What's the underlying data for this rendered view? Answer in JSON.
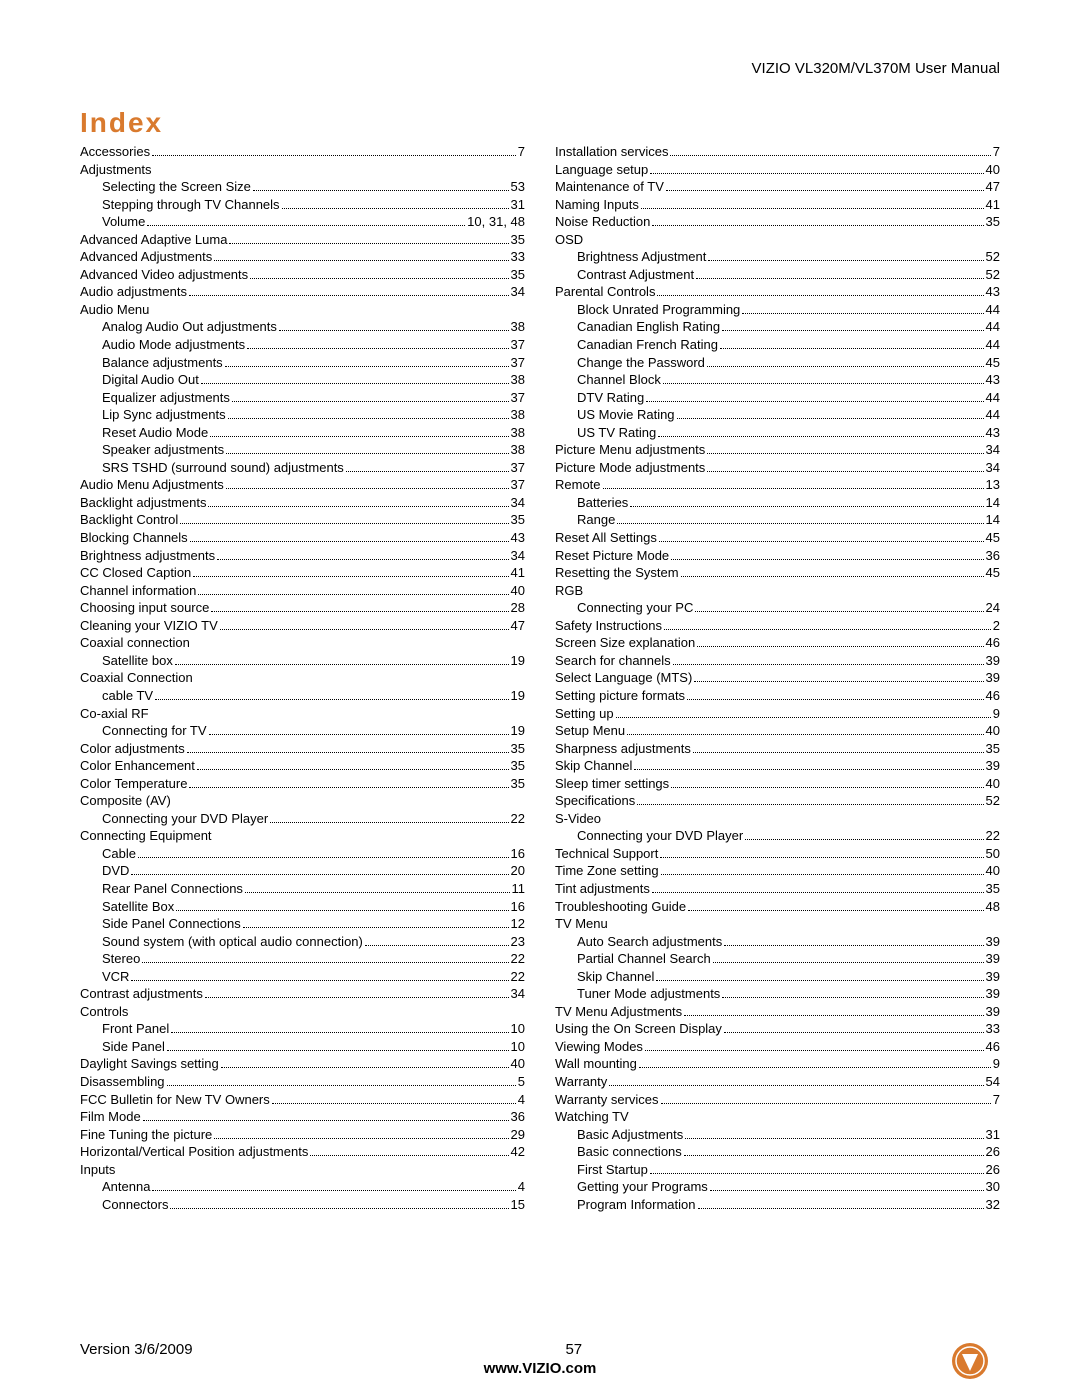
{
  "header": "VIZIO VL320M/VL370M User Manual",
  "title": "Index",
  "footer": {
    "version": "Version 3/6/2009",
    "page": "57",
    "url": "www.VIZIO.com"
  },
  "logo": {
    "outer_color": "#d97a2e",
    "inner_color": "#ffffff"
  },
  "left": [
    {
      "t": "e",
      "l": "Accessories",
      "p": "7"
    },
    {
      "t": "h",
      "l": "Adjustments"
    },
    {
      "t": "s",
      "l": "Selecting the Screen Size",
      "p": "53"
    },
    {
      "t": "s",
      "l": "Stepping through TV Channels",
      "p": "31"
    },
    {
      "t": "s",
      "l": "Volume",
      "p": "10, 31, 48"
    },
    {
      "t": "e",
      "l": "Advanced Adaptive Luma",
      "p": "35"
    },
    {
      "t": "e",
      "l": "Advanced Adjustments",
      "p": "33"
    },
    {
      "t": "e",
      "l": "Advanced Video adjustments",
      "p": "35"
    },
    {
      "t": "e",
      "l": "Audio adjustments",
      "p": "34"
    },
    {
      "t": "h",
      "l": "Audio Menu"
    },
    {
      "t": "s",
      "l": "Analog Audio Out adjustments",
      "p": "38"
    },
    {
      "t": "s",
      "l": "Audio Mode adjustments",
      "p": "37"
    },
    {
      "t": "s",
      "l": "Balance adjustments",
      "p": "37"
    },
    {
      "t": "s",
      "l": "Digital Audio Out",
      "p": "38"
    },
    {
      "t": "s",
      "l": "Equalizer adjustments",
      "p": "37"
    },
    {
      "t": "s",
      "l": "Lip Sync adjustments",
      "p": "38"
    },
    {
      "t": "s",
      "l": "Reset Audio Mode",
      "p": "38"
    },
    {
      "t": "s",
      "l": "Speaker adjustments",
      "p": "38"
    },
    {
      "t": "s",
      "l": "SRS TSHD (surround sound) adjustments",
      "p": "37"
    },
    {
      "t": "e",
      "l": "Audio Menu Adjustments",
      "p": "37"
    },
    {
      "t": "e",
      "l": "Backlight adjustments",
      "p": "34"
    },
    {
      "t": "e",
      "l": "Backlight Control",
      "p": "35"
    },
    {
      "t": "e",
      "l": "Blocking Channels",
      "p": "43"
    },
    {
      "t": "e",
      "l": "Brightness adjustments",
      "p": "34"
    },
    {
      "t": "e",
      "l": "CC Closed Caption",
      "p": "41"
    },
    {
      "t": "e",
      "l": "Channel information",
      "p": "40"
    },
    {
      "t": "e",
      "l": "Choosing input source",
      "p": "28"
    },
    {
      "t": "e",
      "l": "Cleaning your VIZIO TV",
      "p": "47"
    },
    {
      "t": "h",
      "l": "Coaxial connection"
    },
    {
      "t": "s",
      "l": "Satellite box",
      "p": "19"
    },
    {
      "t": "h",
      "l": "Coaxial Connection"
    },
    {
      "t": "s",
      "l": "cable TV",
      "p": "19"
    },
    {
      "t": "h",
      "l": "Co-axial RF"
    },
    {
      "t": "s",
      "l": "Connecting for TV",
      "p": "19"
    },
    {
      "t": "e",
      "l": "Color adjustments",
      "p": "35"
    },
    {
      "t": "e",
      "l": "Color Enhancement",
      "p": "35"
    },
    {
      "t": "e",
      "l": "Color Temperature",
      "p": "35"
    },
    {
      "t": "h",
      "l": "Composite (AV)"
    },
    {
      "t": "s",
      "l": "Connecting your DVD Player",
      "p": "22"
    },
    {
      "t": "h",
      "l": "Connecting Equipment"
    },
    {
      "t": "s",
      "l": "Cable",
      "p": "16"
    },
    {
      "t": "s",
      "l": "DVD",
      "p": "20"
    },
    {
      "t": "s",
      "l": "Rear Panel Connections",
      "p": "11"
    },
    {
      "t": "s",
      "l": "Satellite Box",
      "p": "16"
    },
    {
      "t": "s",
      "l": "Side Panel Connections",
      "p": "12"
    },
    {
      "t": "s",
      "l": "Sound system (with optical audio connection)",
      "p": "23"
    },
    {
      "t": "s",
      "l": "Stereo",
      "p": "22"
    },
    {
      "t": "s",
      "l": "VCR",
      "p": "22"
    },
    {
      "t": "e",
      "l": "Contrast adjustments",
      "p": "34"
    },
    {
      "t": "h",
      "l": "Controls"
    },
    {
      "t": "s",
      "l": "Front Panel",
      "p": "10"
    },
    {
      "t": "s",
      "l": "Side Panel",
      "p": "10"
    },
    {
      "t": "e",
      "l": "Daylight Savings setting",
      "p": "40"
    },
    {
      "t": "e",
      "l": "Disassembling",
      "p": "5"
    },
    {
      "t": "e",
      "l": "FCC Bulletin for New TV Owners",
      "p": "4"
    },
    {
      "t": "e",
      "l": "Film Mode",
      "p": "36"
    },
    {
      "t": "e",
      "l": "Fine Tuning the picture",
      "p": "29"
    },
    {
      "t": "e",
      "l": "Horizontal/Vertical Position adjustments",
      "p": "42"
    },
    {
      "t": "h",
      "l": "Inputs"
    },
    {
      "t": "s",
      "l": "Antenna",
      "p": "4"
    },
    {
      "t": "s",
      "l": "Connectors",
      "p": "15"
    }
  ],
  "right": [
    {
      "t": "e",
      "l": "Installation services",
      "p": "7"
    },
    {
      "t": "e",
      "l": "Language setup",
      "p": "40"
    },
    {
      "t": "e",
      "l": "Maintenance of TV",
      "p": "47"
    },
    {
      "t": "e",
      "l": "Naming Inputs",
      "p": "41"
    },
    {
      "t": "e",
      "l": "Noise Reduction",
      "p": "35"
    },
    {
      "t": "h",
      "l": "OSD"
    },
    {
      "t": "s",
      "l": "Brightness Adjustment",
      "p": "52"
    },
    {
      "t": "s",
      "l": "Contrast Adjustment",
      "p": "52"
    },
    {
      "t": "e",
      "l": "Parental Controls",
      "p": "43"
    },
    {
      "t": "s",
      "l": "Block Unrated Programming",
      "p": "44"
    },
    {
      "t": "s",
      "l": "Canadian English Rating",
      "p": "44"
    },
    {
      "t": "s",
      "l": "Canadian French Rating",
      "p": "44"
    },
    {
      "t": "s",
      "l": "Change the Password",
      "p": "45"
    },
    {
      "t": "s",
      "l": "Channel Block",
      "p": "43"
    },
    {
      "t": "s",
      "l": "DTV Rating",
      "p": "44"
    },
    {
      "t": "s",
      "l": "US Movie Rating",
      "p": "44"
    },
    {
      "t": "s",
      "l": "US TV Rating",
      "p": "43"
    },
    {
      "t": "e",
      "l": "Picture Menu adjustments",
      "p": "34"
    },
    {
      "t": "e",
      "l": "Picture Mode adjustments",
      "p": "34"
    },
    {
      "t": "e",
      "l": "Remote",
      "p": "13"
    },
    {
      "t": "s",
      "l": "Batteries",
      "p": "14"
    },
    {
      "t": "s",
      "l": "Range",
      "p": "14"
    },
    {
      "t": "e",
      "l": "Reset All Settings",
      "p": "45"
    },
    {
      "t": "e",
      "l": "Reset Picture Mode",
      "p": "36"
    },
    {
      "t": "e",
      "l": "Resetting the System",
      "p": "45"
    },
    {
      "t": "h",
      "l": "RGB"
    },
    {
      "t": "s",
      "l": "Connecting your PC",
      "p": "24"
    },
    {
      "t": "e",
      "l": "Safety Instructions",
      "p": "2"
    },
    {
      "t": "e",
      "l": "Screen Size explanation",
      "p": "46"
    },
    {
      "t": "e",
      "l": "Search for channels",
      "p": "39"
    },
    {
      "t": "e",
      "l": "Select Language (MTS)",
      "p": "39"
    },
    {
      "t": "e",
      "l": "Setting picture formats",
      "p": "46"
    },
    {
      "t": "e",
      "l": "Setting up",
      "p": "9"
    },
    {
      "t": "e",
      "l": "Setup Menu",
      "p": "40"
    },
    {
      "t": "e",
      "l": "Sharpness adjustments",
      "p": "35"
    },
    {
      "t": "e",
      "l": "Skip Channel",
      "p": "39"
    },
    {
      "t": "e",
      "l": "Sleep timer settings",
      "p": "40"
    },
    {
      "t": "e",
      "l": "Specifications",
      "p": "52"
    },
    {
      "t": "h",
      "l": "S-Video"
    },
    {
      "t": "s",
      "l": "Connecting your DVD Player",
      "p": "22"
    },
    {
      "t": "e",
      "l": "Technical Support",
      "p": "50"
    },
    {
      "t": "e",
      "l": "Time Zone setting",
      "p": "40"
    },
    {
      "t": "e",
      "l": "Tint adjustments",
      "p": "35"
    },
    {
      "t": "e",
      "l": "Troubleshooting Guide",
      "p": "48"
    },
    {
      "t": "h",
      "l": "TV Menu"
    },
    {
      "t": "s",
      "l": "Auto Search adjustments",
      "p": "39"
    },
    {
      "t": "s",
      "l": "Partial Channel Search",
      "p": "39"
    },
    {
      "t": "s",
      "l": "Skip Channel",
      "p": "39"
    },
    {
      "t": "s",
      "l": "Tuner Mode adjustments",
      "p": "39"
    },
    {
      "t": "e",
      "l": "TV Menu Adjustments",
      "p": "39"
    },
    {
      "t": "e",
      "l": "Using the On Screen Display",
      "p": "33"
    },
    {
      "t": "e",
      "l": "Viewing Modes",
      "p": "46"
    },
    {
      "t": "e",
      "l": "Wall mounting",
      "p": "9"
    },
    {
      "t": "e",
      "l": "Warranty",
      "p": "54"
    },
    {
      "t": "e",
      "l": "Warranty services",
      "p": "7"
    },
    {
      "t": "h",
      "l": "Watching TV"
    },
    {
      "t": "s",
      "l": "Basic Adjustments",
      "p": "31"
    },
    {
      "t": "s",
      "l": "Basic connections",
      "p": "26"
    },
    {
      "t": "s",
      "l": "First Startup",
      "p": "26"
    },
    {
      "t": "s",
      "l": "Getting your Programs",
      "p": "30"
    },
    {
      "t": "s",
      "l": "Program Information",
      "p": "32"
    }
  ]
}
